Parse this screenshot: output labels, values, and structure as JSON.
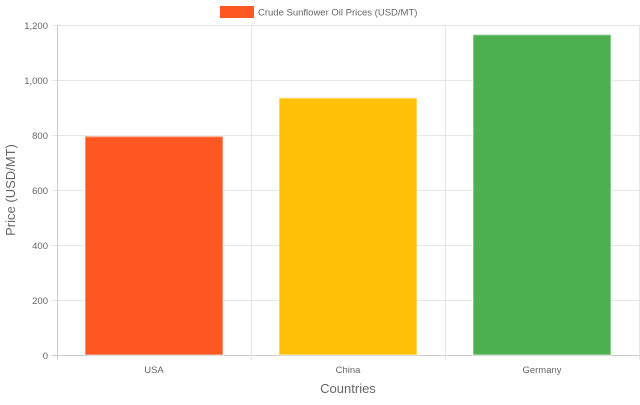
{
  "chart_data": {
    "type": "bar",
    "categories": [
      "USA",
      "China",
      "Germany"
    ],
    "series": [
      {
        "name": "Crude Sunflower Oil Prices (USD/MT)",
        "values": [
          795,
          935,
          1165
        ],
        "colors": [
          "#FF5722",
          "#FFC107",
          "#4CAF50"
        ]
      }
    ],
    "xlabel": "Countries",
    "ylabel": "Price (USD/MT)",
    "ylim": [
      0,
      1200
    ],
    "yticks": [
      "0",
      "200",
      "400",
      "600",
      "800",
      "1,000",
      "1,200"
    ],
    "grid": true,
    "legend": "top"
  }
}
